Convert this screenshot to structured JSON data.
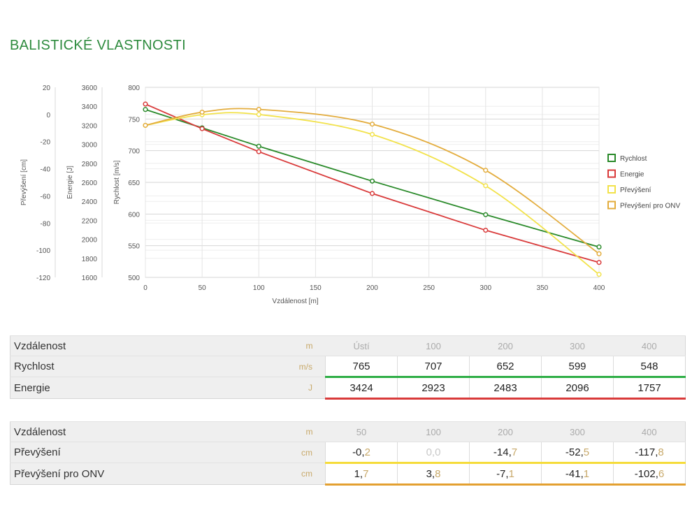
{
  "title": "BALISTICKÉ VLASTNOSTI",
  "chart_data": {
    "type": "line",
    "xlabel": "Vzdálenost [m]",
    "x_ticks": [
      0,
      50,
      100,
      150,
      200,
      250,
      300,
      350,
      400
    ],
    "xlim": [
      0,
      400
    ],
    "grid": true,
    "legend_position": "right",
    "axes": [
      {
        "label": "Převýšení [cm]",
        "ticks": [
          20,
          0,
          -20,
          -40,
          -60,
          -80,
          -100,
          -120
        ],
        "ylim": [
          -120,
          20
        ]
      },
      {
        "label": "Energie [J]",
        "ticks": [
          3600,
          3400,
          3200,
          3000,
          2800,
          2600,
          2400,
          2200,
          2000,
          1800,
          1600
        ],
        "ylim": [
          1600,
          3600
        ]
      },
      {
        "label": "Rychlost [m/s]",
        "ticks": [
          800,
          750,
          700,
          650,
          600,
          550,
          500
        ],
        "ylim": [
          500,
          800
        ]
      }
    ],
    "series": [
      {
        "name": "Rychlost",
        "color": "#2a8a2a",
        "axis": 2,
        "x": [
          0,
          50,
          100,
          200,
          300,
          400
        ],
        "y": [
          765,
          736,
          707,
          652,
          599,
          548
        ]
      },
      {
        "name": "Energie",
        "color": "#d93a3a",
        "axis": 1,
        "x": [
          0,
          50,
          100,
          200,
          300,
          400
        ],
        "y": [
          3424,
          3165,
          2923,
          2483,
          2096,
          1757
        ]
      },
      {
        "name": "Převýšení",
        "color": "#f2e24a",
        "axis": 0,
        "x": [
          0,
          50,
          100,
          200,
          300,
          400
        ],
        "y": [
          -8,
          -0.2,
          0.0,
          -14.7,
          -52.5,
          -117.8
        ]
      },
      {
        "name": "Převýšení pro ONV",
        "color": "#e3ac3c",
        "axis": 0,
        "x": [
          0,
          50,
          100,
          200,
          300,
          400
        ],
        "y": [
          -8,
          1.7,
          3.8,
          -7.1,
          -41.1,
          -102.6
        ]
      }
    ]
  },
  "table1": {
    "header": {
      "label": "Vzdálenost",
      "unit": "m",
      "cols": [
        "Ústí",
        "100",
        "200",
        "300",
        "400"
      ]
    },
    "rows": [
      {
        "label": "Rychlost",
        "unit": "m/s",
        "color": "#2eae45",
        "cells": [
          {
            "i": "765",
            "d": ""
          },
          {
            "i": "707",
            "d": ""
          },
          {
            "i": "652",
            "d": ""
          },
          {
            "i": "599",
            "d": ""
          },
          {
            "i": "548",
            "d": ""
          }
        ]
      },
      {
        "label": "Energie",
        "unit": "J",
        "color": "#d93a3a",
        "cells": [
          {
            "i": "3424",
            "d": ""
          },
          {
            "i": "2923",
            "d": ""
          },
          {
            "i": "2483",
            "d": ""
          },
          {
            "i": "2096",
            "d": ""
          },
          {
            "i": "1757",
            "d": ""
          }
        ]
      }
    ]
  },
  "table2": {
    "header": {
      "label": "Vzdálenost",
      "unit": "m",
      "cols": [
        "50",
        "100",
        "200",
        "300",
        "400"
      ]
    },
    "rows": [
      {
        "label": "Převýšení",
        "unit": "cm",
        "color": "#f5dc3a",
        "cells": [
          {
            "i": "-0,",
            "d": "2"
          },
          {
            "i": "0,",
            "d": "0",
            "muted": true
          },
          {
            "i": "-14,",
            "d": "7"
          },
          {
            "i": "-52,",
            "d": "5"
          },
          {
            "i": "-117,",
            "d": "8"
          }
        ]
      },
      {
        "label": "Převýšení pro ONV",
        "unit": "cm",
        "color": "#e3a030",
        "cells": [
          {
            "i": "1,",
            "d": "7"
          },
          {
            "i": "3,",
            "d": "8"
          },
          {
            "i": "-7,",
            "d": "1"
          },
          {
            "i": "-41,",
            "d": "1"
          },
          {
            "i": "-102,",
            "d": "6"
          }
        ]
      }
    ]
  }
}
